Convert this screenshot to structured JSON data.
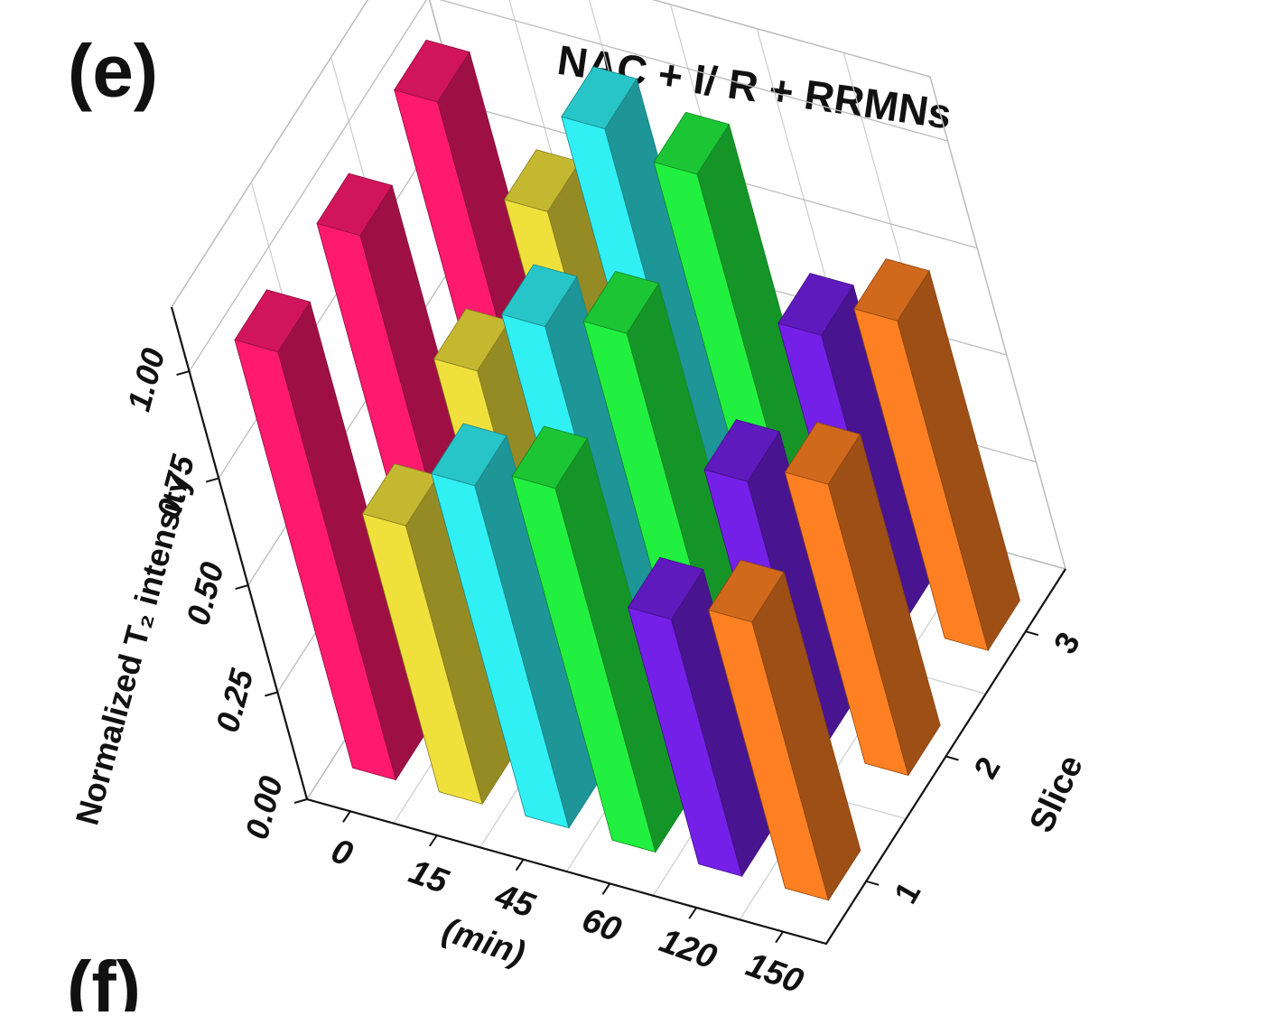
{
  "chart_data": {
    "type": "bar3d",
    "title": "NAC + I/ R + RRMNs",
    "panel_labels": [
      "(e)",
      "(f)"
    ],
    "x_label": "(min)",
    "y_label": "Normalized T₂ intensity",
    "z_label": "Slice",
    "categories": [
      "0",
      "15",
      "45",
      "60",
      "120",
      "150"
    ],
    "colors": [
      "#ff1a6e",
      "#f0e03c",
      "#30f0f4",
      "#22f040",
      "#7420e8",
      "#ff8022"
    ],
    "series": [
      {
        "name": "1",
        "values": [
          1.0,
          0.65,
          0.8,
          0.85,
          0.6,
          0.65
        ]
      },
      {
        "name": "2",
        "values": [
          0.98,
          0.72,
          0.88,
          0.92,
          0.63,
          0.68
        ]
      },
      {
        "name": "3",
        "values": [
          1.0,
          0.8,
          1.05,
          1.0,
          0.68,
          0.77
        ]
      }
    ],
    "ylim": [
      0,
      1.15
    ],
    "yticks": [
      {
        "value": 0,
        "label": "0.00"
      },
      {
        "value": 0.25,
        "label": "0.25"
      },
      {
        "value": 0.5,
        "label": "0.50"
      },
      {
        "value": 0.75,
        "label": "0.75"
      },
      {
        "value": 1,
        "label": "1.00"
      }
    ],
    "grid": true
  }
}
